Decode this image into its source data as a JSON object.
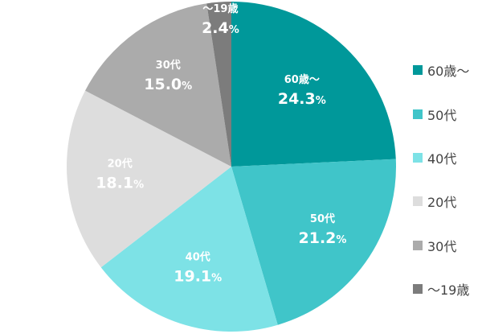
{
  "chart_data": {
    "type": "pie",
    "start": "top",
    "direction": "clockwise",
    "slices": [
      {
        "label": "60歳〜",
        "value": 24.3,
        "value_text": "24.3",
        "unit": "%",
        "color": "#00989a"
      },
      {
        "label": "50代",
        "value": 21.2,
        "value_text": "21.2",
        "unit": "%",
        "color": "#40c5c9"
      },
      {
        "label": "40代",
        "value": 19.1,
        "value_text": "19.1",
        "unit": "%",
        "color": "#7de2e6"
      },
      {
        "label": "20代",
        "value": 18.1,
        "value_text": "18.1",
        "unit": "%",
        "color": "#dddddd"
      },
      {
        "label": "30代",
        "value": 15.0,
        "value_text": "15.0",
        "unit": "%",
        "color": "#ababab"
      },
      {
        "label": "〜19歳",
        "value": 2.4,
        "value_text": "2.4",
        "unit": "%",
        "color": "#7c7c7c"
      }
    ],
    "legend": [
      "60歳〜",
      "50代",
      "40代",
      "20代",
      "30代",
      "〜19歳"
    ],
    "legend_position": "right"
  }
}
